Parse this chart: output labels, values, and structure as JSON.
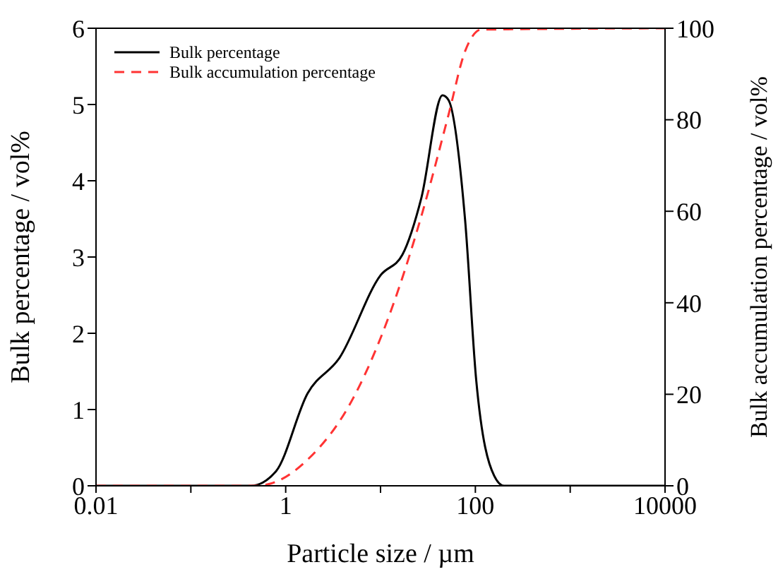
{
  "chart_data": {
    "type": "line",
    "xlabel": "Particle size / µm",
    "ylabel": "Bulk percentage / vol%",
    "y2label": "Bulk accumulation percentage / vol%",
    "log": "x",
    "xlim": [
      0.01,
      10000
    ],
    "xticks": [
      0.01,
      {
        "value": 0.1,
        "label": null
      },
      1,
      {
        "value": 10,
        "label": null
      },
      100,
      {
        "value": 1000,
        "label": null
      },
      10000
    ],
    "ylim": [
      0,
      6
    ],
    "yticks": [
      0,
      1,
      2,
      3,
      4,
      5,
      6
    ],
    "y2lim": [
      0,
      100
    ],
    "y2ticks": [
      0,
      20,
      40,
      60,
      80,
      100
    ],
    "grid": false,
    "legend": "top left",
    "marker": "none",
    "series": [
      {
        "name": "Bulk percentage",
        "color": "#000000",
        "line_style": "solid",
        "x": [
          0.01,
          0.43,
          0.79,
          1.7,
          3.7,
          10,
          17,
          27,
          45,
          52,
          78,
          102,
          158,
          200,
          10000
        ],
        "values": [
          0,
          0,
          0.19,
          1.21,
          1.68,
          2.76,
          3.03,
          3.78,
          5.12,
          5.06,
          3.48,
          1.39,
          0.13,
          0,
          0
        ]
      },
      {
        "name": "Bulk accumulation percentage",
        "color": "#ff3333",
        "line_style": "dashed",
        "axis": "y2",
        "x": [
          0.01,
          0.5,
          0.7,
          1.7,
          5.1,
          15.5,
          27,
          52,
          78,
          115,
          10000
        ],
        "values": [
          0,
          0,
          0.5,
          5.7,
          19,
          43,
          59,
          81,
          95,
          99.7,
          100
        ]
      }
    ]
  }
}
